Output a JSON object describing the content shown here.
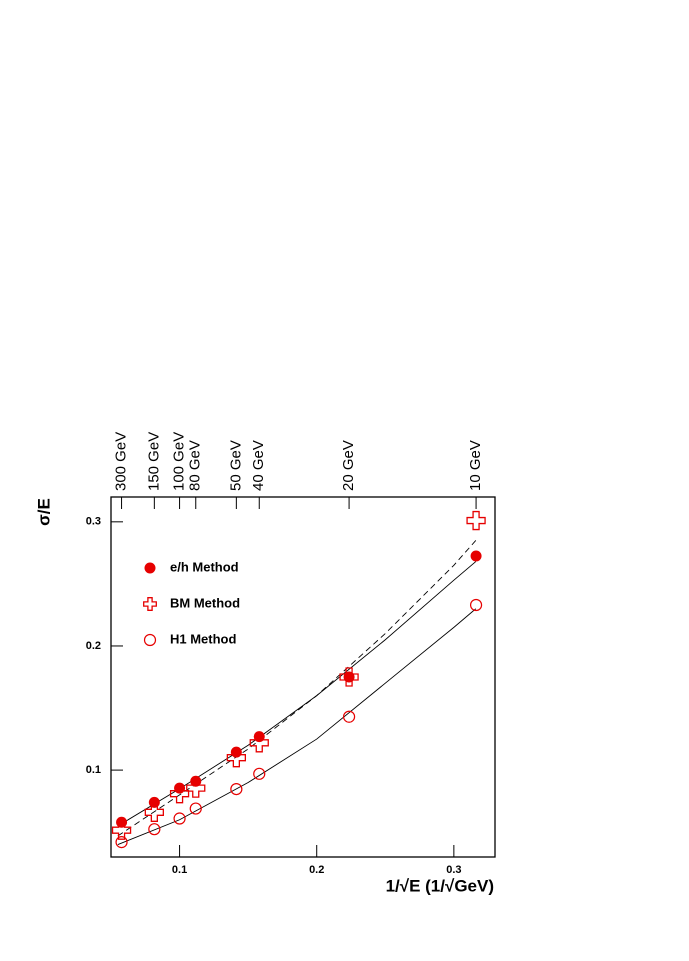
{
  "chart_data": {
    "type": "scatter",
    "xlabel": "1/√E (1/√GeV)",
    "ylabel": "σ/E",
    "xlim": [
      0.05,
      0.33
    ],
    "ylim": [
      0.03,
      0.32
    ],
    "xticks": [
      0.1,
      0.2,
      0.3
    ],
    "yticks": [
      0.1,
      0.2,
      0.3
    ],
    "x2ticks": [
      {
        "value": 0.0577,
        "label": "300 GeV"
      },
      {
        "value": 0.0816,
        "label": "150 GeV"
      },
      {
        "value": 0.1,
        "label": "100 GeV"
      },
      {
        "value": 0.1118,
        "label": "80 GeV"
      },
      {
        "value": 0.1414,
        "label": "50 GeV"
      },
      {
        "value": 0.1581,
        "label": "40 GeV"
      },
      {
        "value": 0.2236,
        "label": "20 GeV"
      },
      {
        "value": 0.3162,
        "label": "10 GeV"
      }
    ],
    "x": [
      0.0577,
      0.0816,
      0.1,
      0.1118,
      0.1414,
      0.1581,
      0.2236,
      0.3162
    ],
    "series": [
      {
        "name": "e/h Method",
        "color": "#e60000",
        "marker": "filled-circle",
        "values": [
          0.058,
          0.074,
          0.0855,
          0.091,
          0.1145,
          0.127,
          0.175,
          0.2725
        ]
      },
      {
        "name": "BM Method",
        "color": "#e60000",
        "marker": "open-cross",
        "values": [
          0.0516,
          0.066,
          0.081,
          0.0855,
          0.11,
          0.122,
          0.175,
          0.301
        ]
      },
      {
        "name": "H1 Method",
        "color": "#e60000",
        "marker": "open-circle",
        "values": [
          0.042,
          0.0524,
          0.061,
          0.069,
          0.0847,
          0.097,
          0.143,
          0.233
        ]
      }
    ],
    "curves": [
      {
        "color": "#000000",
        "dash": false,
        "x": [
          0.055,
          0.1,
          0.15,
          0.2,
          0.25,
          0.3,
          0.316
        ],
        "values": [
          0.055,
          0.085,
          0.12,
          0.16,
          0.205,
          0.253,
          0.268
        ]
      },
      {
        "color": "#000000",
        "dash": true,
        "x": [
          0.055,
          0.1,
          0.15,
          0.2,
          0.25,
          0.3,
          0.316
        ],
        "values": [
          0.047,
          0.08,
          0.117,
          0.16,
          0.21,
          0.265,
          0.285
        ]
      },
      {
        "color": "#000000",
        "dash": false,
        "x": [
          0.055,
          0.1,
          0.15,
          0.2,
          0.25,
          0.3,
          0.316
        ],
        "values": [
          0.04,
          0.06,
          0.09,
          0.125,
          0.17,
          0.215,
          0.23
        ]
      }
    ]
  }
}
